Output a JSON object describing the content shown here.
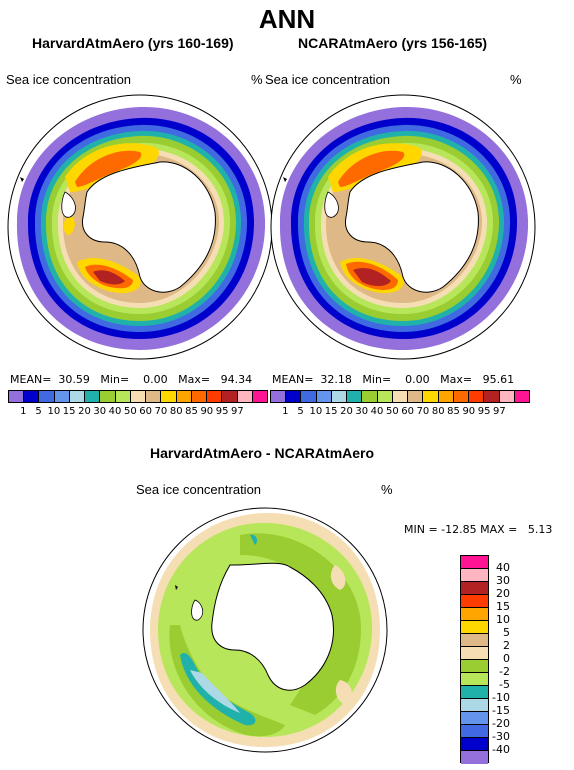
{
  "title": "ANN",
  "panels": [
    {
      "subtitle": "HarvardAtmAero (yrs 160-169)",
      "variable": "Sea ice concentration",
      "unit": "%",
      "mean_label": "MEAN=",
      "mean": "30.59",
      "min_label": "Min=",
      "min": "0.00",
      "max_label": "Max=",
      "max": "94.34"
    },
    {
      "subtitle": "NCARAtmAero (yrs 156-165)",
      "variable": "Sea ice concentration",
      "unit": "%",
      "mean_label": "MEAN=",
      "mean": "32.18",
      "min_label": "Min=",
      "min": "0.00",
      "max_label": "Max=",
      "max": "95.61"
    }
  ],
  "colorbar": {
    "ticks": [
      "1",
      "5",
      "10",
      "15",
      "20",
      "30",
      "40",
      "50",
      "60",
      "70",
      "80",
      "85",
      "90",
      "95",
      "97"
    ],
    "colors": [
      "#9370db",
      "#0000cd",
      "#4169e1",
      "#6495ed",
      "#add8e6",
      "#20b2aa",
      "#9acd32",
      "#b8e65a",
      "#f5deb3",
      "#deb887",
      "#ffd700",
      "#ffa500",
      "#ff6a00",
      "#ff3c00",
      "#b22222",
      "#ffb6c1",
      "#ff1493"
    ]
  },
  "difference": {
    "subtitle": "HarvardAtmAero - NCARAtmAero",
    "variable": "Sea ice concentration",
    "unit": "%",
    "stats": "MIN = -12.85 MAX =   5.13",
    "ticks": [
      "40",
      "30",
      "20",
      "15",
      "10",
      "5",
      "2",
      "0",
      "-2",
      "-5",
      "-10",
      "-15",
      "-20",
      "-30",
      "-40"
    ],
    "colors": [
      "#ff1493",
      "#ffb6c1",
      "#b22222",
      "#ff3c00",
      "#ffa500",
      "#ffd700",
      "#deb887",
      "#f5deb3",
      "#9acd32",
      "#b8e65a",
      "#20b2aa",
      "#add8e6",
      "#6495ed",
      "#4169e1",
      "#0000cd",
      "#9370db"
    ]
  }
}
